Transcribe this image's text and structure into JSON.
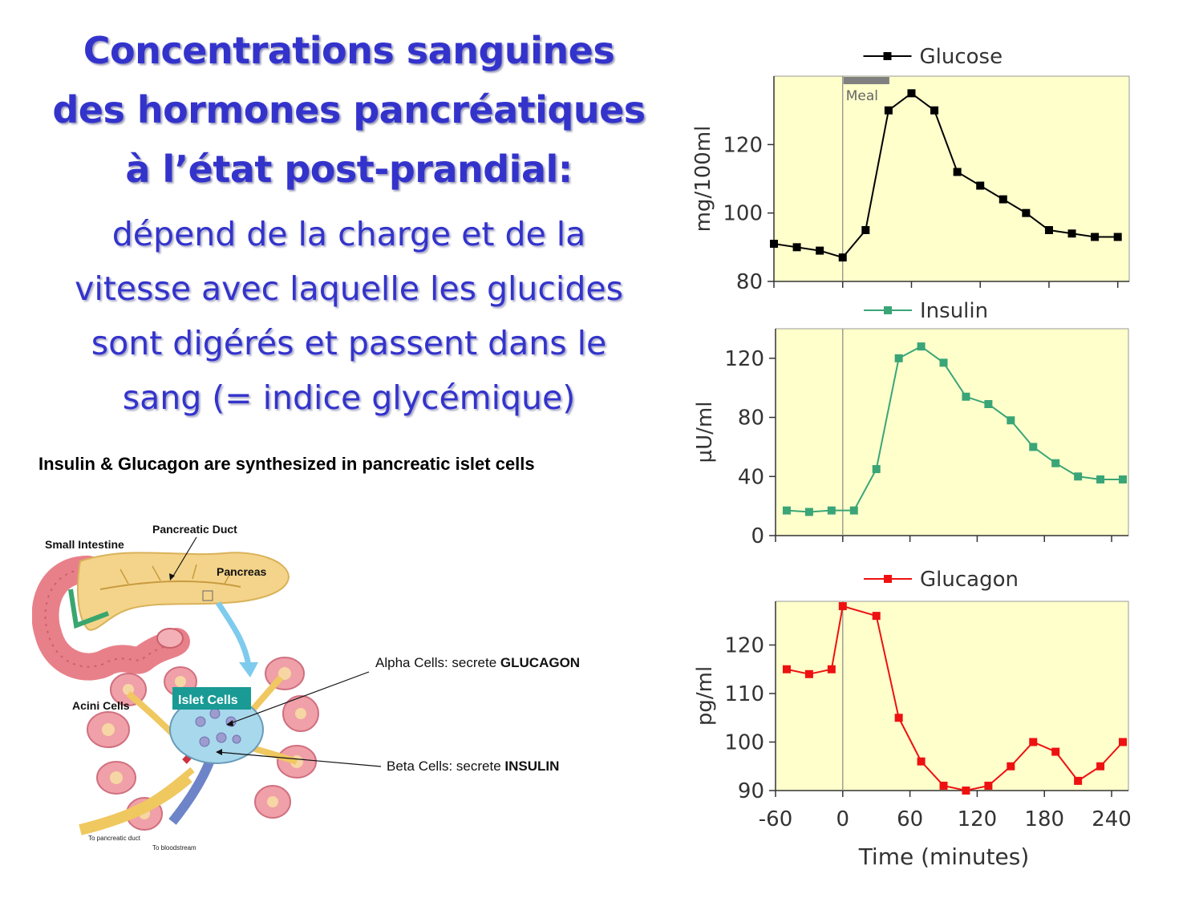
{
  "slide": {
    "title_lines": [
      "Concentrations sanguines",
      "des hormones pancréatiques",
      "à l’état post-prandial:"
    ],
    "subtitle_lines": [
      "dépend de la charge et de la",
      "vitesse avec laquelle les glucides",
      "sont digérés et passent dans le",
      "sang (= indice glycémique)"
    ],
    "caption": "Insulin & Glucagon are synthesized in pancreatic islet cells"
  },
  "diagram": {
    "labels": {
      "pancreatic_duct": "Pancreatic Duct",
      "small_intestine": "Small Intestine",
      "pancreas": "Pancreas",
      "acini": "Acini Cells",
      "islet": "Islet Cells",
      "alpha_prefix": "Alpha Cells: secrete ",
      "alpha_bold": "GLUCAGON",
      "beta_prefix": "Beta Cells: secrete ",
      "beta_bold": "INSULIN",
      "to_duct": "To pancreatic duct",
      "to_blood": "To bloodstream"
    },
    "colors": {
      "islet_badge": "#1a9a94",
      "pancreas": "#f4d48a",
      "intestine": "#e8808a"
    }
  },
  "chart_data": [
    {
      "type": "line",
      "series": [
        {
          "name": "Glucose",
          "color": "#000000",
          "x": [
            -60,
            -40,
            -20,
            0,
            20,
            40,
            60,
            80,
            100,
            120,
            140,
            160,
            180,
            200,
            220,
            240
          ],
          "y": [
            91,
            90,
            89,
            87,
            95,
            130,
            135,
            130,
            112,
            108,
            104,
            100,
            95,
            94,
            93,
            93
          ]
        }
      ],
      "ylabel": "mg/100ml",
      "xlim": [
        -60,
        250
      ],
      "ylim": [
        80,
        140
      ],
      "yticks": [
        80,
        100,
        120
      ],
      "xticks": [
        -60,
        0,
        60,
        120,
        180,
        240
      ],
      "show_xtick_labels": false,
      "annotation": "Meal",
      "legend": "top-center",
      "background": "#ffffcc"
    },
    {
      "type": "line",
      "series": [
        {
          "name": "Insulin",
          "color": "#3aa577",
          "x": [
            -50,
            -30,
            -10,
            10,
            30,
            50,
            70,
            90,
            110,
            130,
            150,
            170,
            190,
            210,
            230,
            250
          ],
          "y": [
            17,
            16,
            17,
            17,
            45,
            120,
            128,
            117,
            94,
            89,
            78,
            60,
            49,
            40,
            38,
            38
          ]
        }
      ],
      "ylabel": "µU/ml",
      "xlim": [
        -60,
        255
      ],
      "ylim": [
        0,
        140
      ],
      "yticks": [
        0,
        40,
        80,
        120
      ],
      "xticks": [
        -60,
        0,
        60,
        120,
        180,
        240
      ],
      "show_xtick_labels": false,
      "legend": "top-center",
      "background": "#ffffcc"
    },
    {
      "type": "line",
      "series": [
        {
          "name": "Glucagon",
          "color": "#ee1111",
          "x": [
            -50,
            -30,
            -10,
            0,
            30,
            50,
            70,
            90,
            110,
            130,
            150,
            170,
            190,
            210,
            230,
            250
          ],
          "y": [
            115,
            114,
            115,
            128,
            126,
            105,
            96,
            91,
            90,
            91,
            95,
            100,
            98,
            92,
            95,
            100
          ]
        }
      ],
      "ylabel": "pg/ml",
      "xlabel": "Time (minutes)",
      "xlim": [
        -60,
        255
      ],
      "ylim": [
        90,
        129
      ],
      "yticks": [
        90,
        100,
        110,
        120
      ],
      "xticks": [
        -60,
        0,
        60,
        120,
        180,
        240
      ],
      "show_xtick_labels": true,
      "legend": "top-center",
      "background": "#ffffcc"
    }
  ]
}
